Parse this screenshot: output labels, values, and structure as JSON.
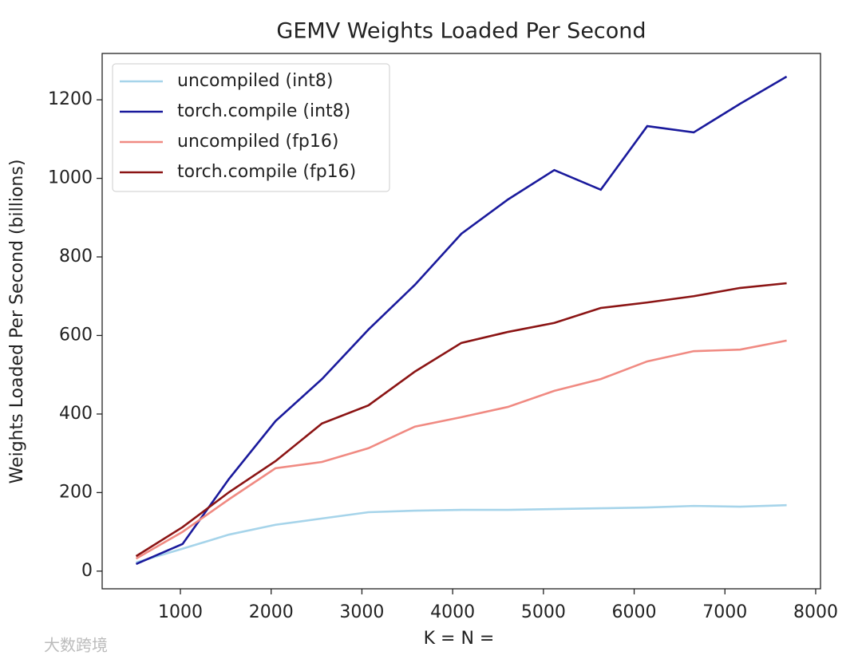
{
  "chart_data": {
    "type": "line",
    "title": "GEMV Weights Loaded Per Second",
    "xlabel": "K = N =",
    "ylabel": "Weights Loaded Per Second (billions)",
    "x": [
      512,
      1024,
      1536,
      2048,
      2560,
      3072,
      3584,
      4096,
      4608,
      5120,
      5632,
      6144,
      6656,
      7168,
      7680
    ],
    "series": [
      {
        "name": "uncompiled (int8)",
        "color": "#a6d4ea",
        "values": [
          22,
          57,
          93,
          118,
          134,
          150,
          154,
          156,
          156,
          158,
          160,
          162,
          166,
          164,
          168
        ]
      },
      {
        "name": "torch.compile (int8)",
        "color": "#1a1a9c",
        "values": [
          18,
          69,
          235,
          382,
          489,
          615,
          729,
          859,
          946,
          1021,
          971,
          1133,
          1117,
          1190,
          1259
        ]
      },
      {
        "name": "uncompiled (fp16)",
        "color": "#f08a82",
        "values": [
          32,
          100,
          183,
          262,
          278,
          313,
          368,
          392,
          418,
          459,
          489,
          534,
          560,
          564,
          587
        ]
      },
      {
        "name": "torch.compile (fp16)",
        "color": "#8b1414",
        "values": [
          38,
          112,
          201,
          280,
          376,
          422,
          508,
          581,
          609,
          632,
          670,
          684,
          700,
          721,
          733
        ]
      }
    ],
    "xlim": [
      138,
      8053
    ],
    "xticks": [
      1000,
      2000,
      3000,
      4000,
      5000,
      6000,
      7000,
      8000
    ],
    "ylim": [
      -45,
      1318
    ],
    "yticks": [
      0,
      200,
      400,
      600,
      800,
      1000,
      1200
    ],
    "grid": false,
    "legend": "upper left"
  },
  "watermark": "大数跨境"
}
